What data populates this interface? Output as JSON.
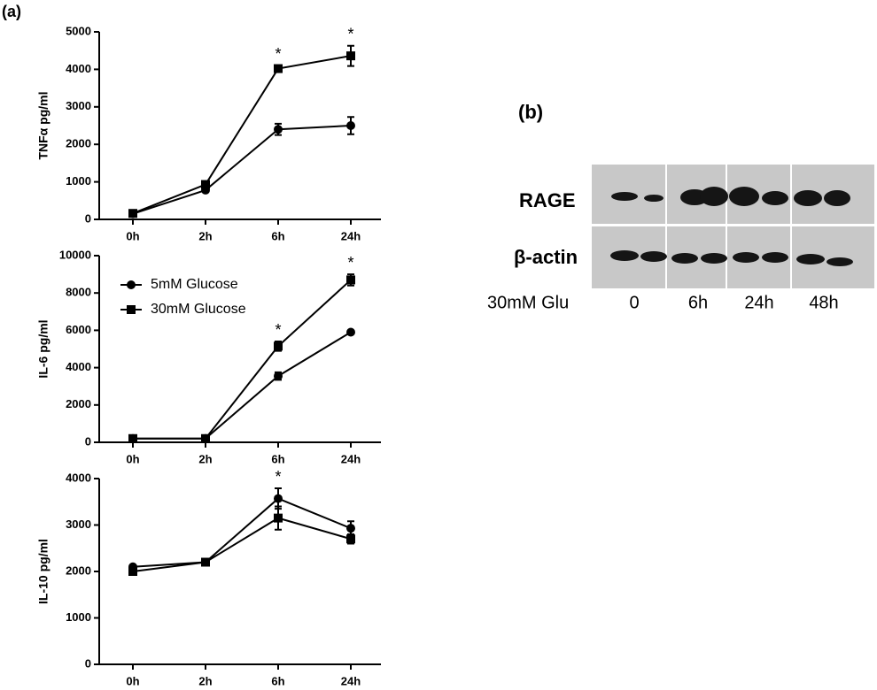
{
  "panel_a_label": "(a)",
  "chart_data": [
    {
      "type": "line",
      "y_label": "TNFα pg/ml",
      "categories": [
        "0h",
        "2h",
        "6h",
        "24h"
      ],
      "ylim": [
        0,
        5000
      ],
      "yticks": [
        0,
        1000,
        2000,
        3000,
        4000,
        5000
      ],
      "legend": false,
      "series": [
        {
          "name": "5mM Glucose",
          "color": "#000000",
          "marker": "circle",
          "values": [
            150,
            780,
            2400,
            2500
          ],
          "errors": [
            0,
            50,
            150,
            230
          ]
        },
        {
          "name": "30mM Glucose",
          "color": "#000000",
          "marker": "square",
          "values": [
            160,
            930,
            4020,
            4360
          ],
          "errors": [
            0,
            60,
            80,
            270
          ]
        }
      ],
      "annotations": [
        {
          "text": "*",
          "category": "6h"
        },
        {
          "text": "*",
          "category": "24h"
        }
      ]
    },
    {
      "type": "line",
      "y_label": "IL-6 pg/ml",
      "categories": [
        "0h",
        "2h",
        "6h",
        "24h"
      ],
      "ylim": [
        0,
        10000
      ],
      "yticks": [
        0,
        2000,
        4000,
        6000,
        8000,
        10000
      ],
      "legend": true,
      "legend_corner": "upper left",
      "series": [
        {
          "name": "5mM Glucose",
          "color": "#000000",
          "marker": "circle",
          "values": [
            200,
            200,
            3550,
            5900
          ],
          "errors": [
            0,
            0,
            200,
            0
          ]
        },
        {
          "name": "30mM Glucose",
          "color": "#000000",
          "marker": "square",
          "values": [
            200,
            200,
            5150,
            8700
          ],
          "errors": [
            0,
            0,
            250,
            300
          ]
        }
      ],
      "annotations": [
        {
          "text": "*",
          "category": "6h"
        },
        {
          "text": "*",
          "category": "24h"
        }
      ]
    },
    {
      "type": "line",
      "y_label": "IL-10 pg/ml",
      "categories": [
        "0h",
        "2h",
        "6h",
        "24h"
      ],
      "ylim": [
        0,
        4000
      ],
      "yticks": [
        0,
        1000,
        2000,
        3000,
        4000
      ],
      "legend": false,
      "series": [
        {
          "name": "5mM Glucose",
          "color": "#000000",
          "marker": "circle",
          "values": [
            2100,
            2200,
            3570,
            2930
          ],
          "errors": [
            20,
            30,
            220,
            150
          ]
        },
        {
          "name": "30mM Glucose",
          "color": "#000000",
          "marker": "square",
          "values": [
            2000,
            2200,
            3150,
            2700
          ],
          "errors": [
            30,
            30,
            250,
            100
          ]
        }
      ],
      "annotations": [
        {
          "text": "*",
          "category": "6h"
        }
      ]
    }
  ],
  "blot": {
    "panel_label": "(b)",
    "rows": [
      "RAGE",
      "β-actin"
    ],
    "condition_label": "30mM Glu",
    "lanes": [
      "0",
      "6h",
      "24h",
      "48h"
    ]
  }
}
